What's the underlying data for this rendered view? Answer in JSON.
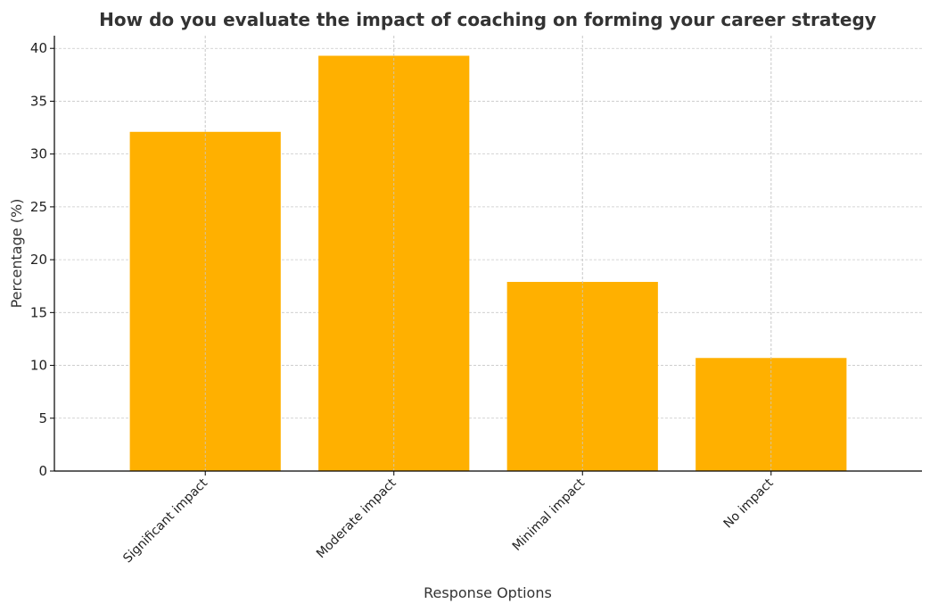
{
  "chart_data": {
    "type": "bar",
    "title": "How do you evaluate the impact of coaching on forming your career strategy",
    "xlabel": "Response Options",
    "ylabel": "Percentage (%)",
    "categories": [
      "Significant impact",
      "Moderate impact",
      "Minimal impact",
      "No impact"
    ],
    "values": [
      32.1,
      39.3,
      17.9,
      10.7
    ],
    "ylim": [
      0,
      41.2
    ],
    "yticks": [
      0,
      5,
      10,
      15,
      20,
      25,
      30,
      35,
      40
    ],
    "grid": true,
    "bar_color": "#FFB000"
  }
}
